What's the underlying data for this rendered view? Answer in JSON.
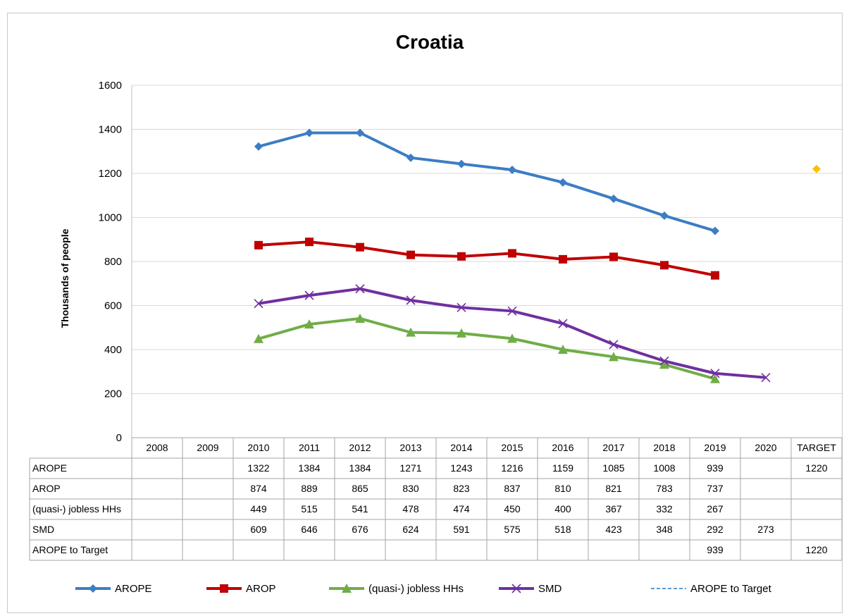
{
  "chart_data": {
    "type": "line",
    "title": "Croatia",
    "ylabel": "Thousands  of people",
    "xlabel": "",
    "ylim": [
      0,
      1600
    ],
    "yticks": [
      0,
      200,
      400,
      600,
      800,
      1000,
      1200,
      1400,
      1600
    ],
    "grid": true,
    "legend_position": "bottom",
    "categories": [
      "2008",
      "2009",
      "2010",
      "2011",
      "2012",
      "2013",
      "2014",
      "2015",
      "2016",
      "2017",
      "2018",
      "2019",
      "2020",
      "TARGET"
    ],
    "series": [
      {
        "name": "AROPE",
        "color": "#3c7dc4",
        "marker": "diamond",
        "values": [
          null,
          null,
          1322,
          1384,
          1384,
          1271,
          1243,
          1216,
          1159,
          1085,
          1008,
          939,
          null,
          null
        ],
        "table": [
          "",
          "",
          "1322",
          "1384",
          "1384",
          "1271",
          "1243",
          "1216",
          "1159",
          "1085",
          "1008",
          "939",
          "",
          "1220"
        ]
      },
      {
        "name": "AROP",
        "color": "#c00000",
        "marker": "square",
        "values": [
          null,
          null,
          874,
          889,
          865,
          830,
          823,
          837,
          810,
          821,
          783,
          737,
          null,
          null
        ],
        "table": [
          "",
          "",
          "874",
          "889",
          "865",
          "830",
          "823",
          "837",
          "810",
          "821",
          "783",
          "737",
          "",
          ""
        ]
      },
      {
        "name": "(quasi-) jobless HHs",
        "color": "#70ad47",
        "marker": "triangle",
        "values": [
          null,
          null,
          449,
          515,
          541,
          478,
          474,
          450,
          400,
          367,
          332,
          267,
          null,
          null
        ],
        "table": [
          "",
          "",
          "449",
          "515",
          "541",
          "478",
          "474",
          "450",
          "400",
          "367",
          "332",
          "267",
          "",
          ""
        ]
      },
      {
        "name": "SMD",
        "color": "#7030a0",
        "marker": "x",
        "values": [
          null,
          null,
          609,
          646,
          676,
          624,
          591,
          575,
          518,
          423,
          348,
          292,
          273,
          null
        ],
        "table": [
          "",
          "",
          "609",
          "646",
          "676",
          "624",
          "591",
          "575",
          "518",
          "423",
          "348",
          "292",
          "273",
          ""
        ]
      },
      {
        "name": "AROPE to Target",
        "color": "#5b9bd5",
        "marker": "none",
        "dashed": true,
        "values": [
          null,
          null,
          null,
          null,
          null,
          null,
          null,
          null,
          null,
          null,
          null,
          939,
          null,
          1220
        ],
        "table": [
          "",
          "",
          "",
          "",
          "",
          "",
          "",
          "",
          "",
          "",
          "",
          "939",
          "",
          "1220"
        ]
      }
    ],
    "target_point": {
      "category": "TARGET",
      "value": 1220,
      "color": "#ffc000",
      "marker": "diamond"
    },
    "table_series_labels": [
      "AROPE",
      "AROP",
      "(quasi-) jobless HHs",
      "SMD",
      "AROPE to Target"
    ],
    "legend": [
      "AROPE",
      "AROP",
      "(quasi-) jobless HHs",
      "SMD",
      "AROPE to Target"
    ]
  }
}
